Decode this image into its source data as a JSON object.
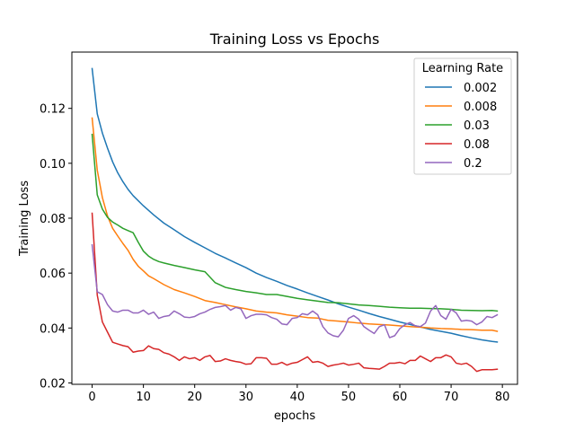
{
  "chart_data": {
    "type": "line",
    "title": "Training Loss vs Epochs",
    "xlabel": "epochs",
    "ylabel": "Training Loss",
    "xlim": [
      -3.95,
      82.95
    ],
    "ylim": [
      0.0195,
      0.1405
    ],
    "xticks": [
      0,
      10,
      20,
      30,
      40,
      50,
      60,
      70,
      80
    ],
    "yticks": [
      0.02,
      0.04,
      0.06,
      0.08,
      0.1,
      0.12
    ],
    "ytick_labels": [
      "0.02",
      "0.04",
      "0.06",
      "0.08",
      "0.10",
      "0.12"
    ],
    "grid": false,
    "legend": {
      "title": "Learning Rate",
      "placement": "top-right"
    },
    "series": [
      {
        "name": "0.002",
        "color": "#1f77b4",
        "x": [
          0,
          1,
          2,
          3,
          4,
          5,
          6,
          7,
          8,
          10,
          12,
          14,
          16,
          18,
          20,
          22,
          24,
          26,
          28,
          30,
          32,
          34,
          36,
          38,
          40,
          42,
          44,
          46,
          48,
          50,
          52,
          54,
          56,
          58,
          60,
          62,
          64,
          66,
          68,
          70,
          72,
          74,
          76,
          78,
          79
        ],
        "values": [
          0.1345,
          0.118,
          0.111,
          0.1055,
          0.1005,
          0.0965,
          0.0933,
          0.0905,
          0.0882,
          0.0845,
          0.0812,
          0.0782,
          0.0758,
          0.0733,
          0.0712,
          0.0692,
          0.0672,
          0.0655,
          0.0637,
          0.062,
          0.06,
          0.0584,
          0.057,
          0.0555,
          0.0542,
          0.0528,
          0.0515,
          0.0502,
          0.0488,
          0.0476,
          0.0465,
          0.0453,
          0.0442,
          0.0432,
          0.0422,
          0.0413,
          0.0404,
          0.0395,
          0.0388,
          0.0381,
          0.0372,
          0.0364,
          0.0357,
          0.0351,
          0.0349
        ]
      },
      {
        "name": "0.008",
        "color": "#ff7f0e",
        "x": [
          0,
          1,
          2,
          3,
          4,
          5,
          6,
          7,
          8,
          9,
          10,
          11,
          12,
          14,
          16,
          18,
          20,
          22,
          24,
          26,
          28,
          30,
          32,
          34,
          36,
          38,
          40,
          42,
          44,
          46,
          48,
          50,
          52,
          54,
          56,
          58,
          60,
          62,
          64,
          66,
          68,
          70,
          72,
          74,
          76,
          78,
          79
        ],
        "values": [
          0.1165,
          0.0975,
          0.0875,
          0.0808,
          0.0763,
          0.0735,
          0.0708,
          0.0683,
          0.065,
          0.0625,
          0.0608,
          0.059,
          0.058,
          0.0558,
          0.054,
          0.0528,
          0.0515,
          0.05,
          0.0493,
          0.0485,
          0.0477,
          0.047,
          0.0462,
          0.0458,
          0.0455,
          0.0448,
          0.0443,
          0.0438,
          0.0436,
          0.0428,
          0.0425,
          0.0422,
          0.0418,
          0.0415,
          0.0413,
          0.0411,
          0.0408,
          0.0405,
          0.0403,
          0.04,
          0.0398,
          0.0397,
          0.0395,
          0.0394,
          0.0392,
          0.0392,
          0.0388
        ]
      },
      {
        "name": "0.03",
        "color": "#2ca02c",
        "x": [
          0,
          1,
          2,
          3,
          4,
          5,
          6,
          7,
          8,
          9,
          10,
          11,
          12,
          13,
          14,
          16,
          18,
          20,
          22,
          23,
          24,
          26,
          28,
          30,
          32,
          34,
          36,
          38,
          40,
          42,
          44,
          46,
          48,
          50,
          52,
          54,
          56,
          58,
          60,
          62,
          64,
          66,
          68,
          70,
          72,
          74,
          76,
          78,
          79
        ],
        "values": [
          0.1105,
          0.0885,
          0.0833,
          0.0803,
          0.0786,
          0.0775,
          0.0763,
          0.0755,
          0.0747,
          0.0712,
          0.068,
          0.0662,
          0.065,
          0.0642,
          0.0637,
          0.0628,
          0.062,
          0.0612,
          0.0605,
          0.0585,
          0.0565,
          0.0548,
          0.054,
          0.0533,
          0.0528,
          0.0522,
          0.0522,
          0.0515,
          0.0508,
          0.0503,
          0.0498,
          0.0493,
          0.0492,
          0.0488,
          0.0484,
          0.0482,
          0.0479,
          0.0476,
          0.0474,
          0.0472,
          0.0472,
          0.0471,
          0.047,
          0.0468,
          0.0465,
          0.0464,
          0.0463,
          0.0464,
          0.0462
        ]
      },
      {
        "name": "0.08",
        "color": "#d62728",
        "x": [
          0,
          1,
          2,
          3,
          4,
          5,
          6,
          7,
          8,
          9,
          10,
          11,
          12,
          13,
          14,
          15,
          16,
          17,
          18,
          19,
          20,
          21,
          22,
          23,
          24,
          25,
          26,
          27,
          28,
          29,
          30,
          31,
          32,
          33,
          34,
          35,
          36,
          37,
          38,
          39,
          40,
          41,
          42,
          43,
          44,
          45,
          46,
          47,
          48,
          49,
          50,
          51,
          52,
          53,
          54,
          55,
          56,
          57,
          58,
          59,
          60,
          61,
          62,
          63,
          64,
          65,
          66,
          67,
          68,
          69,
          70,
          71,
          72,
          73,
          74,
          75,
          76,
          77,
          78,
          79
        ],
        "values": [
          0.0818,
          0.052,
          0.0422,
          0.0385,
          0.0348,
          0.0342,
          0.0336,
          0.0332,
          0.0312,
          0.0316,
          0.0318,
          0.0335,
          0.0325,
          0.0322,
          0.031,
          0.0305,
          0.0295,
          0.0282,
          0.0295,
          0.0288,
          0.0292,
          0.0282,
          0.0295,
          0.03,
          0.0278,
          0.028,
          0.0288,
          0.0282,
          0.0278,
          0.0275,
          0.0268,
          0.027,
          0.0292,
          0.0292,
          0.029,
          0.0268,
          0.0268,
          0.0275,
          0.0265,
          0.0272,
          0.0275,
          0.0285,
          0.0295,
          0.0275,
          0.0278,
          0.0272,
          0.026,
          0.0265,
          0.0268,
          0.0272,
          0.0265,
          0.0268,
          0.0272,
          0.0255,
          0.0253,
          0.0252,
          0.025,
          0.026,
          0.0272,
          0.0272,
          0.0275,
          0.027,
          0.0282,
          0.0282,
          0.0298,
          0.0288,
          0.0278,
          0.0292,
          0.0292,
          0.0302,
          0.0295,
          0.0272,
          0.0268,
          0.0272,
          0.026,
          0.0242,
          0.0248,
          0.0248,
          0.0248,
          0.025
        ]
      },
      {
        "name": "0.2",
        "color": "#9467bd",
        "x": [
          0,
          1,
          2,
          3,
          4,
          5,
          6,
          7,
          8,
          9,
          10,
          11,
          12,
          13,
          14,
          15,
          16,
          17,
          18,
          19,
          20,
          21,
          22,
          23,
          24,
          25,
          26,
          27,
          28,
          29,
          30,
          31,
          32,
          33,
          34,
          35,
          36,
          37,
          38,
          39,
          40,
          41,
          42,
          43,
          44,
          45,
          46,
          47,
          48,
          49,
          50,
          51,
          52,
          53,
          54,
          55,
          56,
          57,
          58,
          59,
          60,
          61,
          62,
          63,
          64,
          65,
          66,
          67,
          68,
          69,
          70,
          71,
          72,
          73,
          74,
          75,
          76,
          77,
          78,
          79
        ],
        "values": [
          0.0703,
          0.0532,
          0.0522,
          0.0485,
          0.0462,
          0.0458,
          0.0465,
          0.0465,
          0.0455,
          0.0455,
          0.0465,
          0.045,
          0.0458,
          0.0435,
          0.0442,
          0.0445,
          0.0462,
          0.0452,
          0.044,
          0.0438,
          0.0442,
          0.0452,
          0.0458,
          0.0468,
          0.0475,
          0.0478,
          0.0482,
          0.0465,
          0.0475,
          0.047,
          0.0435,
          0.0445,
          0.045,
          0.045,
          0.0448,
          0.0438,
          0.0432,
          0.0415,
          0.0412,
          0.0435,
          0.0438,
          0.0452,
          0.0448,
          0.0462,
          0.0448,
          0.0405,
          0.0382,
          0.0372,
          0.0368,
          0.0392,
          0.0435,
          0.0445,
          0.0432,
          0.0405,
          0.0392,
          0.038,
          0.0405,
          0.0412,
          0.0365,
          0.0372,
          0.0398,
          0.0412,
          0.042,
          0.0408,
          0.0405,
          0.0418,
          0.0462,
          0.0482,
          0.0445,
          0.0432,
          0.0468,
          0.0455,
          0.0425,
          0.0428,
          0.0425,
          0.0412,
          0.0422,
          0.0442,
          0.0438,
          0.0448
        ]
      }
    ]
  }
}
